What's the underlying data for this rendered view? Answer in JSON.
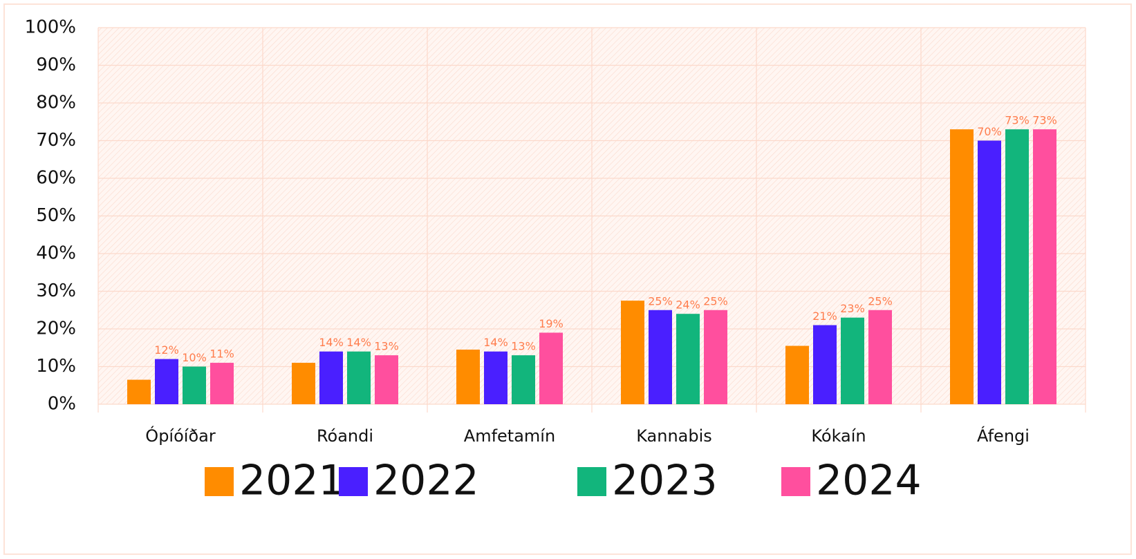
{
  "chart_data": {
    "type": "bar",
    "categories": [
      "Ópíóíðar",
      "Róandi",
      "Amfetamín",
      "Kannabis",
      "Kókaín",
      "Áfengi"
    ],
    "series": [
      {
        "name": "2021",
        "color": "#ff8c00",
        "values": [
          6.5,
          11,
          14.5,
          27.5,
          15.5,
          73
        ]
      },
      {
        "name": "2022",
        "color": "#4a1fff",
        "values": [
          12,
          14,
          14,
          25,
          21,
          70
        ],
        "value_labels": [
          "12%",
          "14%",
          "14%",
          "25%",
          "21%",
          "70%"
        ]
      },
      {
        "name": "2023",
        "color": "#12b57c",
        "values": [
          10,
          14,
          13,
          24,
          23,
          73
        ],
        "value_labels": [
          "10%",
          "14%",
          "13%",
          "24%",
          "23%",
          "73%"
        ]
      },
      {
        "name": "2024",
        "color": "#ff4f9e",
        "values": [
          11,
          13,
          19,
          25,
          25,
          73
        ],
        "value_labels": [
          "11%",
          "13%",
          "19%",
          "25%",
          "25%",
          "73%"
        ]
      }
    ],
    "ylim": [
      0,
      100
    ],
    "yticks": [
      {
        "value": 0,
        "label": "0%"
      },
      {
        "value": 10,
        "label": "10%"
      },
      {
        "value": 20,
        "label": "20%"
      },
      {
        "value": 30,
        "label": "30%"
      },
      {
        "value": 40,
        "label": "40%"
      },
      {
        "value": 50,
        "label": "50%"
      },
      {
        "value": 60,
        "label": "60%"
      },
      {
        "value": 70,
        "label": "70%"
      },
      {
        "value": 80,
        "label": "80%"
      },
      {
        "value": 90,
        "label": "90%"
      },
      {
        "value": 100,
        "label": "100%"
      }
    ],
    "grid": true,
    "legend": "bottom"
  }
}
